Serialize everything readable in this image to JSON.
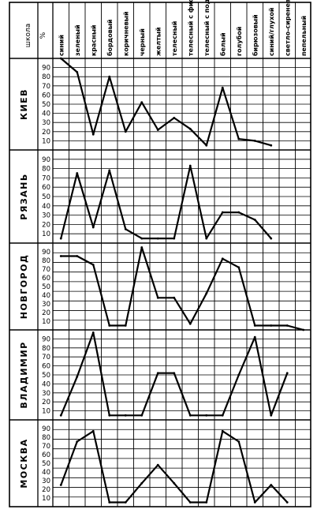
{
  "chart_data": {
    "type": "line",
    "header_school": "школа",
    "header_percent": "%",
    "categories": [
      "синий",
      "зеленый",
      "красный",
      "бордовый",
      "коричневый",
      "черный",
      "желтый",
      "телесный",
      "телесный с фиолетовым отсвет.",
      "телесный с подкрасом",
      "белый",
      "голубой",
      "бирюзовый",
      "синий/глухой",
      "светло-сиреневый",
      "пепельный"
    ],
    "yticks": [
      10,
      20,
      30,
      40,
      50,
      60,
      70,
      80,
      90
    ],
    "series": [
      {
        "name": "КИЕВ",
        "values": [
          100,
          85,
          17,
          80,
          20,
          52,
          22,
          35,
          23,
          5,
          68,
          12,
          10,
          5,
          null,
          null
        ]
      },
      {
        "name": "РЯЗАНЬ",
        "values": [
          5,
          75,
          17,
          78,
          15,
          5,
          5,
          5,
          83,
          5,
          33,
          33,
          25,
          5,
          null,
          null
        ]
      },
      {
        "name": "НОВГОРОД",
        "values": [
          85,
          85,
          75,
          5,
          5,
          95,
          37,
          37,
          7,
          42,
          82,
          72,
          5,
          5,
          5,
          0
        ]
      },
      {
        "name": "ВЛАДИМИР",
        "values": [
          5,
          48,
          97,
          5,
          5,
          5,
          52,
          52,
          5,
          5,
          5,
          50,
          92,
          5,
          52,
          null
        ]
      },
      {
        "name": "МОСКВА",
        "values": [
          25,
          75,
          87,
          5,
          5,
          27,
          48,
          27,
          5,
          5,
          87,
          75,
          5,
          25,
          5,
          null
        ]
      }
    ]
  }
}
